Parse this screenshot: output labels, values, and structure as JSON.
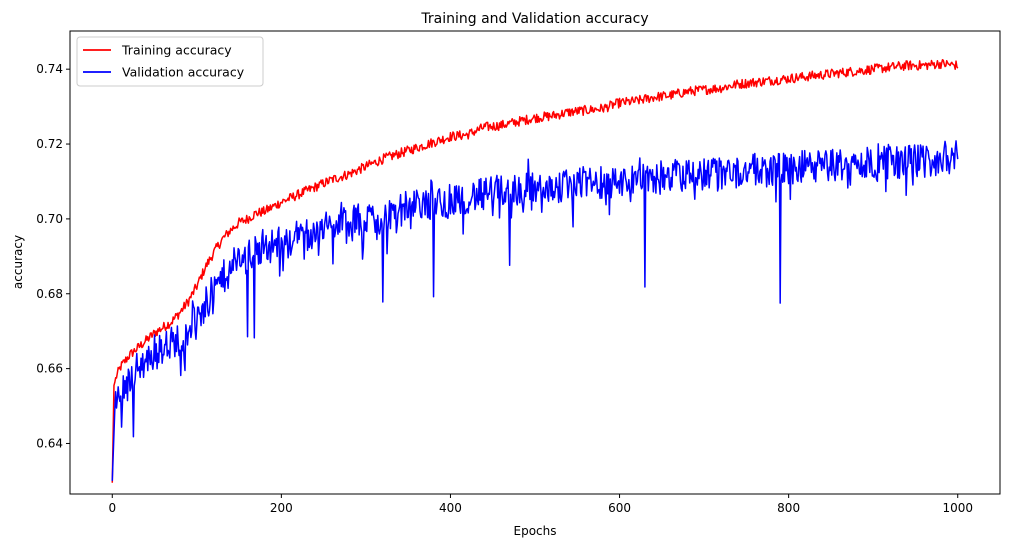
{
  "chart_data": {
    "type": "line",
    "title": "Training and Validation accuracy",
    "xlabel": "Epochs",
    "ylabel": "accuracy",
    "xlim": [
      -50,
      1050
    ],
    "ylim": [
      0.6265,
      0.7502
    ],
    "x_ticks": [
      0,
      200,
      400,
      600,
      800,
      1000
    ],
    "x_tick_labels": [
      "0",
      "200",
      "400",
      "600",
      "800",
      "1000"
    ],
    "y_ticks": [
      0.64,
      0.66,
      0.68,
      0.7,
      0.72,
      0.74
    ],
    "y_tick_labels": [
      "0.64",
      "0.66",
      "0.68",
      "0.70",
      "0.72",
      "0.74"
    ],
    "grid": false,
    "legend_position": "upper-left",
    "series": [
      {
        "name": "Training accuracy",
        "color": "#ff0000",
        "x": [
          0,
          2,
          5,
          10,
          20,
          30,
          40,
          50,
          60,
          70,
          80,
          90,
          100,
          110,
          120,
          130,
          140,
          150,
          160,
          170,
          180,
          200,
          220,
          240,
          260,
          280,
          300,
          320,
          340,
          360,
          380,
          400,
          420,
          440,
          460,
          480,
          500,
          520,
          540,
          560,
          580,
          600,
          620,
          640,
          660,
          680,
          700,
          720,
          740,
          760,
          780,
          800,
          820,
          840,
          860,
          880,
          900,
          920,
          940,
          960,
          980,
          1000
        ],
        "y": [
          0.6295,
          0.6555,
          0.658,
          0.6605,
          0.6635,
          0.6655,
          0.6675,
          0.6695,
          0.671,
          0.6725,
          0.675,
          0.678,
          0.682,
          0.687,
          0.691,
          0.6945,
          0.697,
          0.699,
          0.7,
          0.7015,
          0.702,
          0.7045,
          0.7065,
          0.7085,
          0.7105,
          0.712,
          0.714,
          0.716,
          0.7175,
          0.719,
          0.7205,
          0.722,
          0.7225,
          0.7245,
          0.725,
          0.726,
          0.727,
          0.7275,
          0.7285,
          0.729,
          0.7295,
          0.731,
          0.7315,
          0.7325,
          0.733,
          0.734,
          0.7345,
          0.735,
          0.736,
          0.7365,
          0.737,
          0.7375,
          0.738,
          0.7385,
          0.739,
          0.7395,
          0.74,
          0.7405,
          0.741,
          0.741,
          0.7415,
          0.741
        ],
        "noise": 0.0013
      },
      {
        "name": "Validation accuracy",
        "color": "#0000ff",
        "x": [
          0,
          3,
          8,
          15,
          25,
          35,
          45,
          55,
          70,
          80,
          90,
          100,
          110,
          120,
          130,
          140,
          150,
          160,
          170,
          180,
          200,
          220,
          240,
          260,
          280,
          300,
          320,
          340,
          360,
          380,
          400,
          420,
          440,
          460,
          480,
          500,
          520,
          540,
          560,
          580,
          600,
          620,
          640,
          660,
          680,
          700,
          720,
          740,
          760,
          780,
          800,
          820,
          840,
          860,
          880,
          900,
          920,
          940,
          960,
          980,
          1000
        ],
        "y": [
          0.63,
          0.649,
          0.653,
          0.656,
          0.659,
          0.661,
          0.663,
          0.665,
          0.667,
          0.668,
          0.671,
          0.674,
          0.677,
          0.681,
          0.684,
          0.687,
          0.689,
          0.69,
          0.691,
          0.692,
          0.694,
          0.6955,
          0.697,
          0.698,
          0.699,
          0.7,
          0.701,
          0.7025,
          0.7035,
          0.704,
          0.705,
          0.706,
          0.7065,
          0.7075,
          0.708,
          0.708,
          0.7085,
          0.709,
          0.7095,
          0.71,
          0.71,
          0.7105,
          0.711,
          0.711,
          0.7115,
          0.712,
          0.7125,
          0.7125,
          0.713,
          0.713,
          0.7135,
          0.714,
          0.714,
          0.7145,
          0.7145,
          0.715,
          0.715,
          0.7155,
          0.7155,
          0.716,
          0.717
        ],
        "noise": 0.0045,
        "dips": [
          {
            "x": 25,
            "y": 0.6418
          },
          {
            "x": 160,
            "y": 0.6685
          },
          {
            "x": 168,
            "y": 0.6682
          },
          {
            "x": 320,
            "y": 0.6778
          },
          {
            "x": 380,
            "y": 0.6792
          },
          {
            "x": 470,
            "y": 0.6876
          },
          {
            "x": 630,
            "y": 0.6818
          },
          {
            "x": 790,
            "y": 0.6775
          }
        ]
      }
    ]
  }
}
